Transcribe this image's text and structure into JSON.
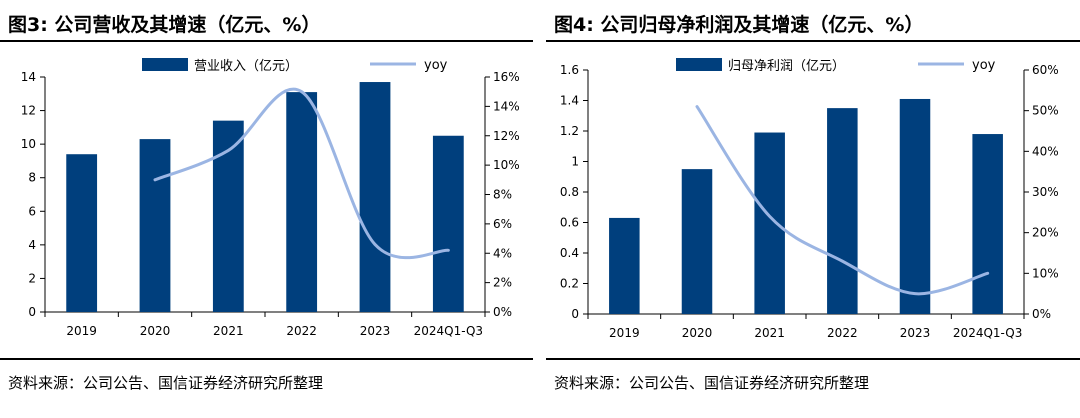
{
  "colors": {
    "bar": "#003f7d",
    "line": "#9bb5e3",
    "axis": "#000000"
  },
  "charts": [
    {
      "title": "图3: 公司营收及其增速（亿元、%）",
      "source": "资料来源：公司公告、国信证券经济研究所整理",
      "chart_data": {
        "type": "bar",
        "categories": [
          "2019",
          "2020",
          "2021",
          "2022",
          "2023",
          "2024Q1-Q3"
        ],
        "series": [
          {
            "name": "营业收入（亿元）",
            "type": "bar",
            "axis": "left",
            "values": [
              9.4,
              10.3,
              11.4,
              13.1,
              13.7,
              10.5
            ]
          },
          {
            "name": "yoy",
            "type": "line",
            "axis": "right",
            "smooth": true,
            "values": [
              null,
              9.0,
              11.0,
              15.0,
              4.6,
              4.2
            ]
          }
        ],
        "y_left": {
          "min": 0,
          "max": 14,
          "step": 2,
          "ticks": [
            "0",
            "2",
            "4",
            "6",
            "8",
            "10",
            "12",
            "14"
          ]
        },
        "y_right": {
          "min": 0,
          "max": 16,
          "step": 2,
          "ticks": [
            "0%",
            "2%",
            "4%",
            "6%",
            "8%",
            "10%",
            "12%",
            "14%",
            "16%"
          ]
        },
        "legend": "top",
        "grid": false
      }
    },
    {
      "title": "图4: 公司归母净利润及其增速（亿元、%）",
      "source": "资料来源：公司公告、国信证券经济研究所整理",
      "chart_data": {
        "type": "bar",
        "categories": [
          "2019",
          "2020",
          "2021",
          "2022",
          "2023",
          "2024Q1-Q3"
        ],
        "series": [
          {
            "name": "归母净利润（亿元）",
            "type": "bar",
            "axis": "left",
            "values": [
              0.63,
              0.95,
              1.19,
              1.35,
              1.41,
              1.18
            ]
          },
          {
            "name": "yoy",
            "type": "line",
            "axis": "right",
            "smooth": true,
            "values": [
              null,
              51,
              24,
              13,
              5,
              10
            ]
          }
        ],
        "y_left": {
          "min": 0,
          "max": 1.6,
          "step": 0.2,
          "ticks": [
            "0",
            "0.2",
            "0.4",
            "0.6",
            "0.8",
            "1",
            "1.2",
            "1.4",
            "1.6"
          ]
        },
        "y_right": {
          "min": 0,
          "max": 60,
          "step": 10,
          "ticks": [
            "0%",
            "10%",
            "20%",
            "30%",
            "40%",
            "50%",
            "60%"
          ]
        },
        "legend": "top",
        "grid": false
      }
    }
  ]
}
